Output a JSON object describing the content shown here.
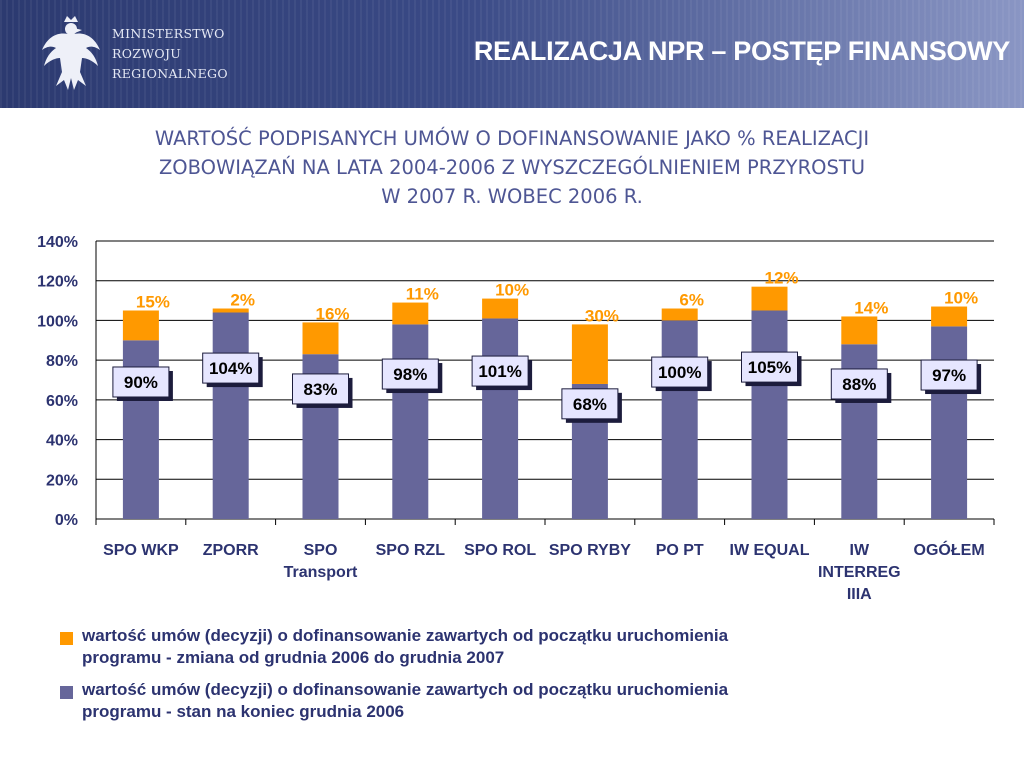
{
  "header": {
    "ministry_line1": "MINISTERSTWO",
    "ministry_line2": "ROZWOJU",
    "ministry_line3": "REGIONALNEGO",
    "title": "REALIZACJA NPR – POSTĘP FINANSOWY"
  },
  "subtitle": {
    "line1": "WARTOŚĆ PODPISANYCH UMÓW O DOFINANSOWANIE JAKO % REALIZACJI",
    "line2": "ZOBOWIĄZAŃ NA LATA 2004-2006 Z WYSZCZEGÓLNIENIEM PRZYROSTU",
    "line3": "W 2007 R. WOBEC 2006 R."
  },
  "colors": {
    "base": "#66669a",
    "increase": "#ff9900",
    "increase_label": "#ff9900",
    "base_label_text": "#000000",
    "base_label_bg": "#e6e6ff",
    "axis_text": "#2c3370"
  },
  "chart_data": {
    "type": "bar",
    "stacked": true,
    "categories": [
      [
        "SPO WKP"
      ],
      [
        "ZPORR"
      ],
      [
        "SPO",
        "Transport"
      ],
      [
        "SPO RZL"
      ],
      [
        "SPO ROL"
      ],
      [
        "SPO RYBY"
      ],
      [
        "PO PT"
      ],
      [
        "IW EQUAL"
      ],
      [
        "IW",
        "INTERREG",
        "IIIA"
      ],
      [
        "OGÓŁEM"
      ]
    ],
    "series": [
      {
        "name": "wartość umów (decyzji) o dofinansowanie zawartych od początku uruchomienia programu - stan na koniec grudnia 2006",
        "values": [
          90,
          104,
          83,
          98,
          101,
          68,
          100,
          105,
          88,
          97
        ],
        "labels": [
          "90%",
          "104%",
          "83%",
          "98%",
          "101%",
          "68%",
          "100%",
          "105%",
          "88%",
          "97%"
        ]
      },
      {
        "name": "wartość umów (decyzji) o dofinansowanie zawartych od początku uruchomienia programu - zmiana od grudnia 2006 do grudnia 2007",
        "values": [
          15,
          2,
          16,
          11,
          10,
          30,
          6,
          12,
          14,
          10
        ],
        "labels": [
          "15%",
          "2%",
          "16%",
          "11%",
          "10%",
          "30%",
          "6%",
          "12%",
          "14%",
          "10%"
        ]
      }
    ],
    "yticks": [
      "0%",
      "20%",
      "40%",
      "60%",
      "80%",
      "100%",
      "120%",
      "140%"
    ],
    "ylim": [
      0,
      140
    ],
    "ystep": 20,
    "grid": true,
    "legend_position": "bottom",
    "title": "",
    "xlabel": "",
    "ylabel": ""
  },
  "legend": [
    {
      "line1": "wartość umów (decyzji) o dofinansowanie zawartych od początku uruchomienia",
      "line2": "programu - zmiana od grudnia 2006 do grudnia 2007",
      "color": "#ff9900"
    },
    {
      "line1": "wartość umów (decyzji) o dofinansowanie zawartych od początku uruchomienia",
      "line2": "programu - stan na koniec grudnia 2006",
      "color": "#66669a"
    }
  ]
}
